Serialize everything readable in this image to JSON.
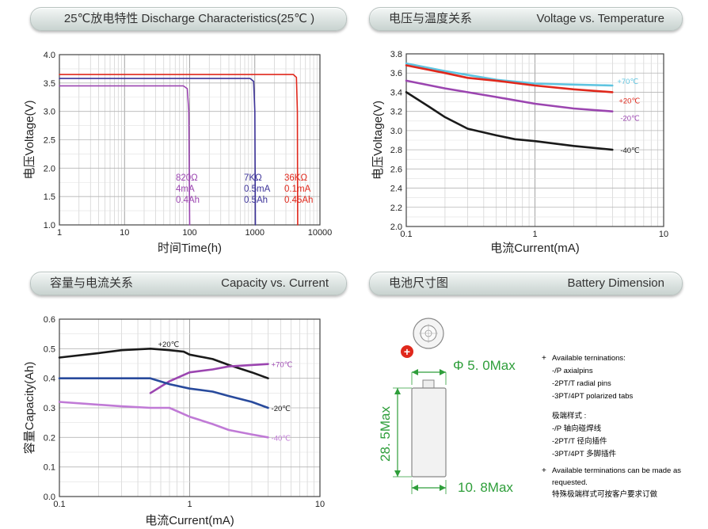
{
  "headers": {
    "discharge": {
      "title": "25℃放电特性    Discharge Characteristics(25℃ )"
    },
    "voltage_temp": {
      "cn": "电压与温度关系",
      "en": "Voltage vs. Temperature"
    },
    "capacity": {
      "cn": "容量与电流关系",
      "en": "Capacity vs. Current"
    },
    "dimension": {
      "cn": "电池尺寸图",
      "en": "Battery Dimension"
    }
  },
  "colors": {
    "red": "#e0281c",
    "blue": "#3d3399",
    "purple": "#9b45b0",
    "cyan": "#5ec4e0",
    "black": "#1a1a1a",
    "lightpurple": "#c07ad6",
    "navy": "#284a9c",
    "green": "#2e9e3a"
  },
  "chart_data": [
    {
      "id": "discharge",
      "type": "line",
      "title": "25℃放电特性 Discharge Characteristics(25℃ )",
      "xlabel": "时间Time(h)",
      "ylabel": "电压Voltage(V)",
      "xscale": "log",
      "xlim": [
        1,
        10000
      ],
      "ylim": [
        1.0,
        4.0
      ],
      "xticks": [
        "1",
        "10",
        "100",
        "1000",
        "10000"
      ],
      "yticks": [
        "1.0",
        "1.5",
        "2.0",
        "2.5",
        "3.0",
        "3.5",
        "4.0"
      ],
      "series": [
        {
          "name": "820Ω 4mA 0.4Ah",
          "color": "purple",
          "label_lines": [
            "820Ω",
            "4mA",
            "0.4Ah"
          ],
          "x": [
            1,
            80,
            92,
            97,
            100
          ],
          "y": [
            3.45,
            3.45,
            3.4,
            3.0,
            1.0
          ]
        },
        {
          "name": "7KΩ 0.5mA 0.5Ah",
          "color": "blue",
          "label_lines": [
            "7KΩ",
            "0.5mA",
            "0.5Ah"
          ],
          "x": [
            1,
            850,
            960,
            1000,
            1020
          ],
          "y": [
            3.58,
            3.58,
            3.53,
            3.0,
            1.0
          ]
        },
        {
          "name": "36KΩ 0.1mA 0.45Ah",
          "color": "red",
          "label_lines": [
            "36KΩ",
            "0.1mA",
            "0.45Ah"
          ],
          "x": [
            1,
            3900,
            4350,
            4500,
            4550
          ],
          "y": [
            3.65,
            3.65,
            3.6,
            3.0,
            1.0
          ]
        }
      ]
    },
    {
      "id": "voltage_temp",
      "type": "line",
      "title": "电压与温度关系 Voltage vs. Temperature",
      "xlabel": "电流Current(mA)",
      "ylabel": "电压Voltage(V)",
      "xscale": "log",
      "xlim": [
        0.1,
        10
      ],
      "ylim": [
        2.0,
        3.8
      ],
      "xticks": [
        "0.1",
        "1",
        "10"
      ],
      "yticks": [
        "2.0",
        "2.2",
        "2.4",
        "2.6",
        "2.8",
        "3.0",
        "3.2",
        "3.4",
        "3.6",
        "3.8"
      ],
      "series": [
        {
          "name": "+70℃",
          "color": "cyan",
          "x": [
            0.1,
            0.2,
            0.5,
            1,
            2,
            4
          ],
          "y": [
            3.7,
            3.62,
            3.53,
            3.49,
            3.48,
            3.47
          ]
        },
        {
          "name": "+20℃",
          "color": "red",
          "x": [
            0.1,
            0.2,
            0.3,
            0.5,
            1,
            2,
            4
          ],
          "y": [
            3.68,
            3.6,
            3.55,
            3.52,
            3.47,
            3.43,
            3.4
          ]
        },
        {
          "name": "-20℃",
          "color": "purple",
          "x": [
            0.1,
            0.2,
            0.5,
            1,
            2,
            4
          ],
          "y": [
            3.52,
            3.44,
            3.35,
            3.28,
            3.23,
            3.2
          ]
        },
        {
          "name": "-40℃",
          "color": "black",
          "x": [
            0.1,
            0.15,
            0.2,
            0.3,
            0.5,
            0.7,
            1,
            2,
            4
          ],
          "y": [
            3.4,
            3.25,
            3.14,
            3.02,
            2.95,
            2.91,
            2.89,
            2.84,
            2.8
          ]
        }
      ]
    },
    {
      "id": "capacity",
      "type": "line",
      "title": "容量与电流关系 Capacity vs. Current",
      "xlabel": "电流Current(mA)",
      "ylabel": "容量Capacity(Ah)",
      "xscale": "log",
      "xlim": [
        0.1,
        10
      ],
      "ylim": [
        0.0,
        0.6
      ],
      "xticks": [
        "0.1",
        "1",
        "10"
      ],
      "yticks": [
        "0.0",
        "0.1",
        "0.2",
        "0.3",
        "0.4",
        "0.5",
        "0.6"
      ],
      "series": [
        {
          "name": "+20℃",
          "color": "black",
          "x": [
            0.1,
            0.2,
            0.3,
            0.5,
            0.7,
            0.9,
            1.0,
            1.5,
            2,
            3,
            4
          ],
          "y": [
            0.47,
            0.485,
            0.495,
            0.5,
            0.495,
            0.49,
            0.48,
            0.465,
            0.445,
            0.42,
            0.4
          ]
        },
        {
          "name": "+70℃",
          "color": "purple",
          "x": [
            0.5,
            0.7,
            1,
            1.5,
            2,
            3,
            4
          ],
          "y": [
            0.35,
            0.39,
            0.42,
            0.43,
            0.44,
            0.445,
            0.448
          ]
        },
        {
          "name": "-20℃",
          "color": "navy",
          "x": [
            0.1,
            0.5,
            0.7,
            1,
            1.5,
            2,
            3,
            4
          ],
          "y": [
            0.4,
            0.4,
            0.38,
            0.365,
            0.355,
            0.34,
            0.32,
            0.3
          ]
        },
        {
          "name": "-40℃",
          "color": "lightpurple",
          "x": [
            0.1,
            0.3,
            0.5,
            0.7,
            1,
            1.5,
            2,
            3,
            4
          ],
          "y": [
            0.32,
            0.305,
            0.3,
            0.3,
            0.27,
            0.245,
            0.225,
            0.21,
            0.2
          ]
        }
      ]
    }
  ],
  "dimension": {
    "diameter": "Φ 5. 0Max",
    "length": "28. 5Max",
    "lead": "10. 8Max",
    "plus_sign": "+",
    "notes": [
      {
        "bullet": "+",
        "lines": [
          "Available terninations:",
          "-/P axialpins",
          "-2PT/T radial pins",
          "-3PT/4PT polarized tabs"
        ]
      },
      {
        "bullet": "",
        "lines": [
          "极端样式 :",
          "-/P 轴向碰焊线",
          "-2PT/T 径向插件",
          "-3PT/4PT 多脚插件"
        ]
      },
      {
        "bullet": "+",
        "lines": [
          "Available terminations can be made as",
          "requested.",
          "特殊极端样式可按客户要求订做"
        ]
      }
    ]
  }
}
